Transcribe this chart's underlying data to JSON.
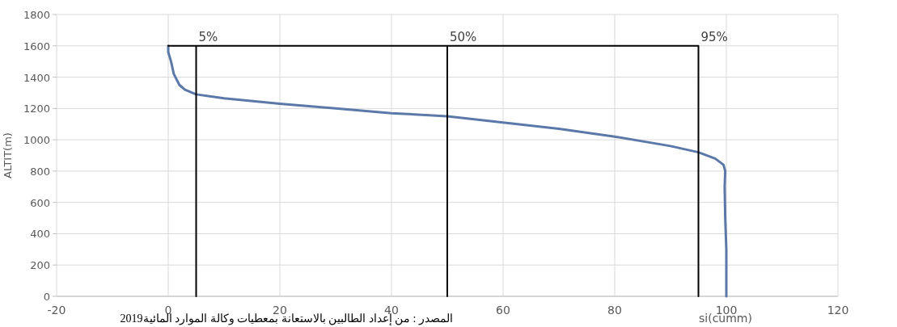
{
  "chart_data": {
    "type": "line",
    "xlabel": "si(cumm)",
    "ylabel": "ALTIT(m)",
    "xlim": [
      -20,
      120
    ],
    "xticks": [
      -20,
      0,
      20,
      40,
      60,
      80,
      100,
      120
    ],
    "ylim": [
      0,
      1800
    ],
    "yticks": [
      0,
      200,
      400,
      600,
      800,
      1000,
      1200,
      1400,
      1600,
      1800
    ],
    "grid": true,
    "series": [
      {
        "color": "#5b79a8",
        "x": [
          0,
          0,
          0.5,
          1,
          2,
          3,
          5,
          10,
          20,
          30,
          40,
          50,
          60,
          70,
          80,
          90,
          95,
          98,
          99.5,
          99.8,
          99.7,
          99.8,
          100,
          100
        ],
        "values": [
          1600,
          1560,
          1500,
          1420,
          1350,
          1320,
          1290,
          1265,
          1230,
          1200,
          1170,
          1150,
          1110,
          1070,
          1020,
          960,
          920,
          880,
          840,
          800,
          700,
          500,
          300,
          0
        ]
      },
      {
        "color": "#000000",
        "x": [
          5,
          5,
          null,
          0,
          95,
          95,
          null,
          50,
          50
        ],
        "values": [
          0,
          1600,
          null,
          1600,
          1600,
          0,
          null,
          1600,
          0
        ]
      }
    ],
    "annotations": [
      {
        "text": "5%",
        "x": 5,
        "y": 1600
      },
      {
        "text": "50%",
        "x": 50,
        "y": 1600
      },
      {
        "text": "95%",
        "x": 95,
        "y": 1600
      },
      "المصدر : من إعداد الطالبين بالاستعانة بمعطيات وكالة الموارد المائية2019"
    ]
  }
}
